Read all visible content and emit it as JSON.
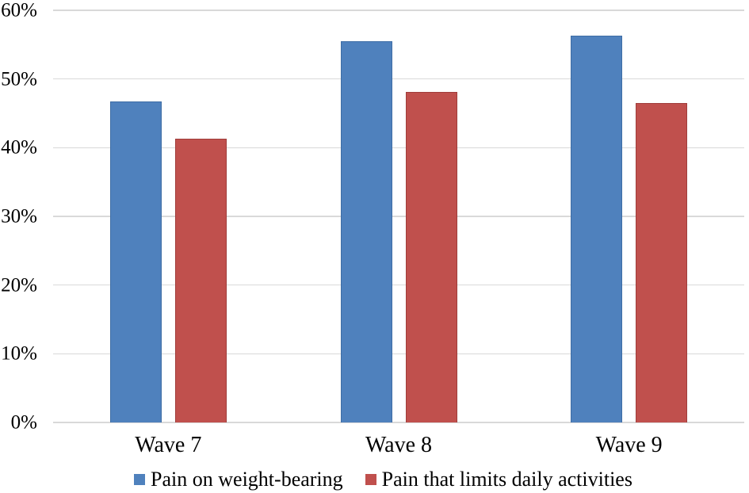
{
  "figure": {
    "background_color": "#ffffff",
    "text_color": "#000000"
  },
  "chart_data": {
    "type": "bar",
    "title": "",
    "xlabel": "",
    "ylabel": "",
    "categories": [
      "Wave 7",
      "Wave 8",
      "Wave 9"
    ],
    "series": [
      {
        "name": "Pain on weight-bearing",
        "color": "#4F81BD",
        "border_color": "#3E6DA5",
        "values": [
          46.7,
          55.5,
          56.3
        ]
      },
      {
        "name": "Pain that limits daily activities",
        "color": "#C0504D",
        "border_color": "#A03D3B",
        "values": [
          41.3,
          48.1,
          46.5
        ]
      }
    ],
    "ylim": [
      0,
      60
    ],
    "y_ticks": [
      0,
      10,
      20,
      30,
      40,
      50,
      60
    ],
    "y_tick_suffix": "%",
    "y_tick_labels": [
      "0%",
      "10%",
      "20%",
      "30%",
      "40%",
      "50%",
      "60%"
    ],
    "grid": true,
    "gridline_color": "#D9D9D9",
    "legend_position": "bottom"
  }
}
